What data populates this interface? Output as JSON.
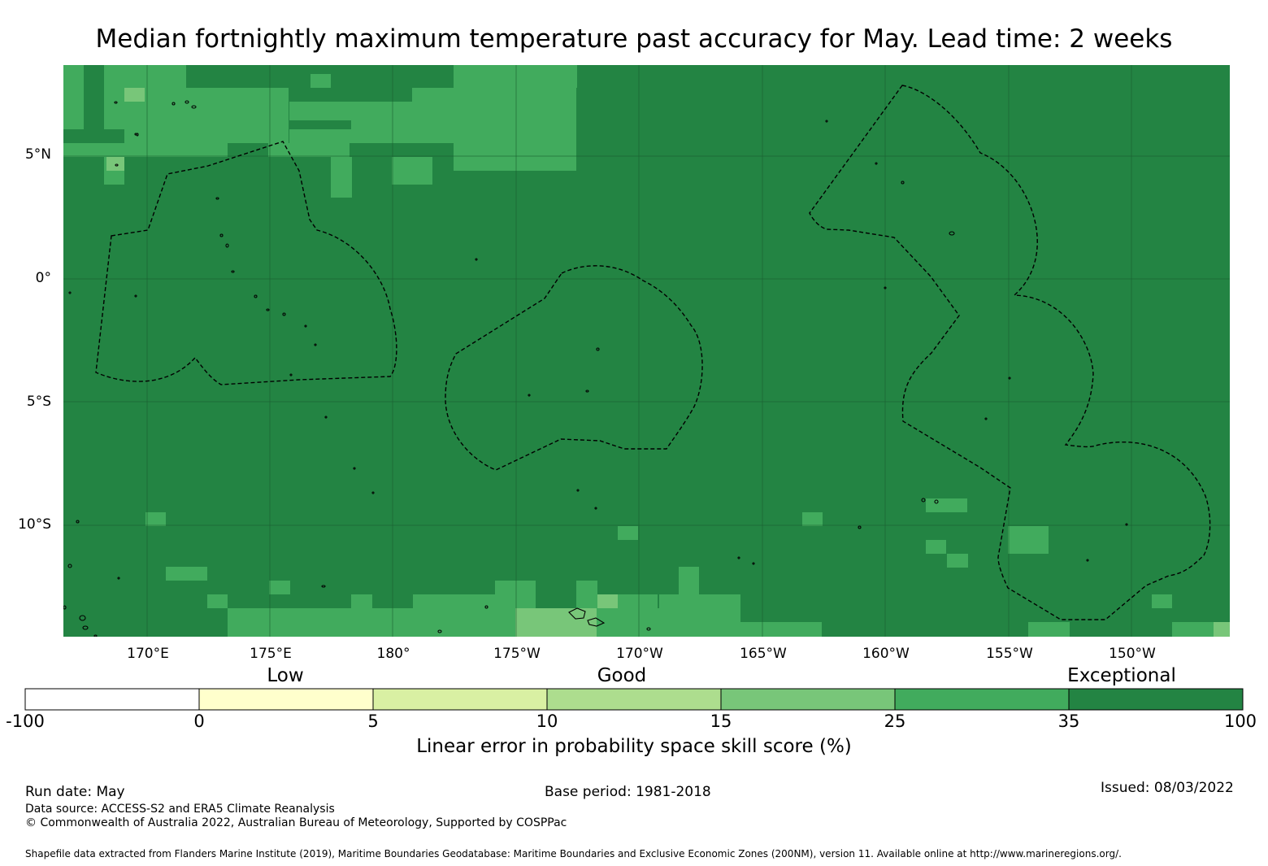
{
  "title": "Median fortnightly maximum temperature past accuracy for May. Lead time: 2 weeks",
  "map": {
    "colors": {
      "background": "#238443",
      "cell_35_25": "#41ab5d",
      "cell_25_15": "#78c679",
      "border": "#000000",
      "grid": "#1a5f30"
    },
    "lat_labels": [
      "5°N",
      "0°",
      "5°S",
      "10°S"
    ],
    "lon_labels": [
      "170°E",
      "175°E",
      "180°",
      "175°W",
      "170°W",
      "165°W",
      "160°W",
      "155°W",
      "150°W"
    ]
  },
  "legend": {
    "categories": [
      "Low",
      "Good",
      "Exceptional"
    ],
    "ticks": [
      "-100",
      "0",
      "5",
      "10",
      "15",
      "25",
      "35",
      "100"
    ],
    "colors": [
      "#ffffff",
      "#ffffcc",
      "#d9f0a3",
      "#addd8e",
      "#78c679",
      "#41ab5d",
      "#238443"
    ],
    "title": "Linear error in probability space skill score (%)"
  },
  "footer": {
    "run_date": "Run date: May",
    "base_period": "Base period: 1981-2018",
    "issued": "Issued: 08/03/2022",
    "data_source": "Data source: ACCESS-S2 and ERA5 Climate Reanalysis",
    "copyright": "© Commonwealth of Australia 2022, Australian Bureau of Meteorology, Supported by COSPPac",
    "shapefile": "Shapefile data extracted from Flanders Marine Institute (2019), Maritime Boundaries Geodatabase: Maritime Boundaries and Exclusive Economic Zones (200NM), version 11. Available online at http://www.marineregions.org/."
  }
}
